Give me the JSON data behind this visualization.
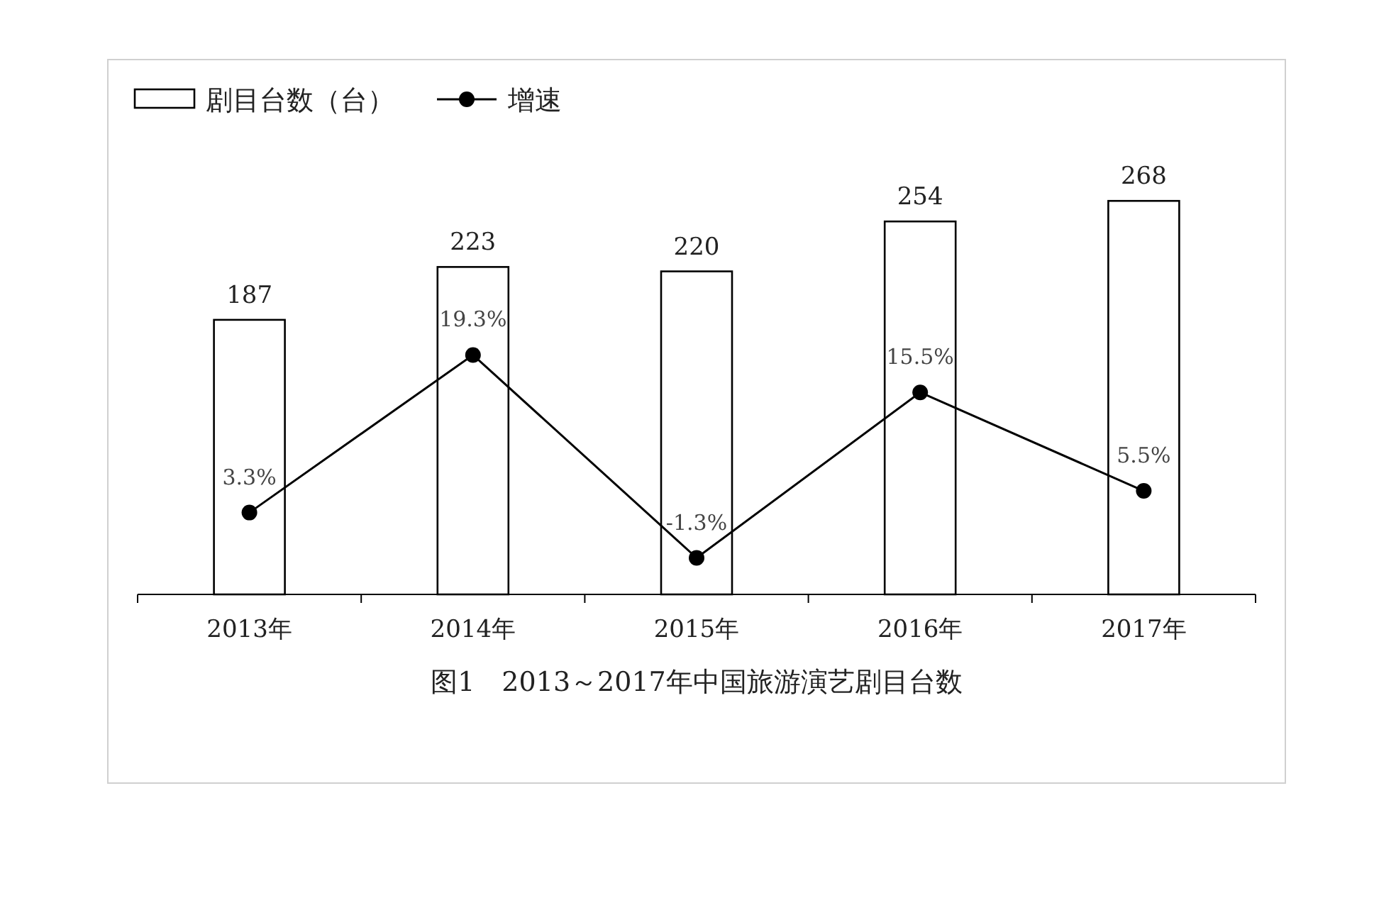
{
  "chart_data": {
    "type": "bar",
    "title": "图1　2013～2017年中国旅游演艺剧目台数",
    "categories": [
      "2013年",
      "2014年",
      "2015年",
      "2016年",
      "2017年"
    ],
    "series": [
      {
        "name": "剧目台数（台）",
        "color": "#ffffff",
        "values": [
          187,
          223,
          220,
          254,
          268
        ],
        "value_labels": [
          "187",
          "223",
          "220",
          "254",
          "268"
        ]
      },
      {
        "name": "增速",
        "type": "line",
        "axis": "y2",
        "color": "#000000",
        "values": [
          3.3,
          19.3,
          -1.3,
          15.5,
          5.5
        ],
        "value_labels": [
          "3.3%",
          "19.3%",
          "-1.3%",
          "15.5%",
          "5.5%"
        ]
      }
    ],
    "legend": "top left",
    "marker": "circle",
    "line_style": "solid",
    "tick_labels": "x"
  }
}
